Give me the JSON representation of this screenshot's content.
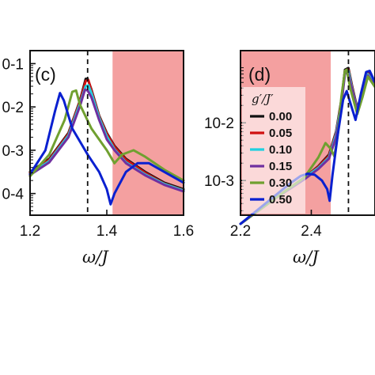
{
  "chart_data": [
    {
      "panel": "(c)",
      "type": "line",
      "xlabel": "ω/J",
      "ylabel": "",
      "xlim": [
        1.2,
        1.6
      ],
      "ylim_log10": [
        -4.5,
        -0.7
      ],
      "yscale": "log",
      "xticks": [
        {
          "value": 1.2,
          "label": "1.2"
        },
        {
          "value": 1.4,
          "label": "1.4"
        },
        {
          "value": 1.6,
          "label": "1.6"
        }
      ],
      "yticks": [
        {
          "exp": -1,
          "label": "0-1"
        },
        {
          "exp": -2,
          "label": "0-2"
        },
        {
          "exp": -3,
          "label": "0-3"
        },
        {
          "exp": -4,
          "label": "0-4"
        }
      ],
      "dashed_line_x": 1.35,
      "shaded_region": {
        "x_from": 1.415,
        "x_to": 1.6,
        "color": "#f4a0a0"
      },
      "series": [
        {
          "name": "0.00",
          "color": "#111111",
          "points": [
            [
              1.2,
              -3.5
            ],
            [
              1.25,
              -3.2
            ],
            [
              1.3,
              -2.6
            ],
            [
              1.33,
              -1.85
            ],
            [
              1.345,
              -1.35
            ],
            [
              1.35,
              -1.35
            ],
            [
              1.36,
              -1.6
            ],
            [
              1.38,
              -2.2
            ],
            [
              1.4,
              -2.6
            ],
            [
              1.42,
              -2.9
            ],
            [
              1.45,
              -3.2
            ],
            [
              1.5,
              -3.5
            ],
            [
              1.55,
              -3.75
            ],
            [
              1.6,
              -3.9
            ]
          ]
        },
        {
          "name": "0.05",
          "color": "#d01010",
          "points": [
            [
              1.2,
              -3.52
            ],
            [
              1.25,
              -3.22
            ],
            [
              1.3,
              -2.62
            ],
            [
              1.33,
              -1.87
            ],
            [
              1.345,
              -1.4
            ],
            [
              1.352,
              -1.38
            ],
            [
              1.36,
              -1.62
            ],
            [
              1.38,
              -2.22
            ],
            [
              1.4,
              -2.62
            ],
            [
              1.42,
              -2.92
            ],
            [
              1.45,
              -3.22
            ],
            [
              1.5,
              -3.52
            ],
            [
              1.55,
              -3.77
            ],
            [
              1.6,
              -3.92
            ]
          ]
        },
        {
          "name": "0.10",
          "color": "#20d0e0",
          "points": [
            [
              1.2,
              -3.55
            ],
            [
              1.25,
              -3.25
            ],
            [
              1.3,
              -2.66
            ],
            [
              1.33,
              -1.92
            ],
            [
              1.345,
              -1.52
            ],
            [
              1.352,
              -1.5
            ],
            [
              1.36,
              -1.68
            ],
            [
              1.38,
              -2.25
            ],
            [
              1.4,
              -2.68
            ],
            [
              1.42,
              -2.98
            ],
            [
              1.45,
              -3.28
            ],
            [
              1.5,
              -3.56
            ],
            [
              1.55,
              -3.78
            ],
            [
              1.6,
              -3.93
            ]
          ]
        },
        {
          "name": "0.15",
          "color": "#7030a0",
          "points": [
            [
              1.2,
              -3.57
            ],
            [
              1.25,
              -3.28
            ],
            [
              1.3,
              -2.7
            ],
            [
              1.33,
              -1.98
            ],
            [
              1.343,
              -1.6
            ],
            [
              1.35,
              -1.62
            ],
            [
              1.36,
              -1.78
            ],
            [
              1.38,
              -2.3
            ],
            [
              1.4,
              -2.75
            ],
            [
              1.42,
              -3.0
            ],
            [
              1.45,
              -3.3
            ],
            [
              1.5,
              -3.58
            ],
            [
              1.55,
              -3.8
            ],
            [
              1.6,
              -3.95
            ]
          ]
        },
        {
          "name": "0.30",
          "color": "#70a030",
          "points": [
            [
              1.2,
              -3.6
            ],
            [
              1.25,
              -3.1
            ],
            [
              1.29,
              -2.3
            ],
            [
              1.31,
              -1.65
            ],
            [
              1.32,
              -1.62
            ],
            [
              1.33,
              -1.95
            ],
            [
              1.36,
              -2.5
            ],
            [
              1.4,
              -3.0
            ],
            [
              1.42,
              -3.3
            ],
            [
              1.44,
              -3.1
            ],
            [
              1.47,
              -3.0
            ],
            [
              1.5,
              -3.15
            ],
            [
              1.55,
              -3.45
            ],
            [
              1.6,
              -3.7
            ]
          ]
        },
        {
          "name": "0.50",
          "color": "#0a20d0",
          "points": [
            [
              1.2,
              -3.55
            ],
            [
              1.24,
              -3.0
            ],
            [
              1.265,
              -2.1
            ],
            [
              1.278,
              -1.68
            ],
            [
              1.288,
              -1.85
            ],
            [
              1.31,
              -2.5
            ],
            [
              1.35,
              -3.1
            ],
            [
              1.38,
              -3.5
            ],
            [
              1.4,
              -3.9
            ],
            [
              1.41,
              -4.25
            ],
            [
              1.42,
              -4.0
            ],
            [
              1.45,
              -3.5
            ],
            [
              1.48,
              -3.3
            ],
            [
              1.51,
              -3.3
            ],
            [
              1.55,
              -3.5
            ],
            [
              1.6,
              -3.75
            ]
          ]
        }
      ]
    },
    {
      "panel": "(d)",
      "type": "line",
      "xlabel": "ω/J",
      "ylabel": "",
      "xlim": [
        2.2,
        2.58
      ],
      "ylim_log10": [
        -3.6,
        -0.75
      ],
      "yscale": "log",
      "xticks": [
        {
          "value": 2.2,
          "label": "2.2"
        },
        {
          "value": 2.4,
          "label": "2.4"
        }
      ],
      "yticks": [
        {
          "exp": -2,
          "label": "10-2"
        },
        {
          "exp": -3,
          "label": "10-3"
        }
      ],
      "dashed_line_x": 2.505,
      "shaded_region": {
        "x_from": 2.2,
        "x_to": 2.455,
        "color": "#f4a0a0"
      },
      "series": [
        {
          "name": "0.00",
          "color": "#111111",
          "points": [
            [
              2.2,
              -3.75
            ],
            [
              2.3,
              -3.3
            ],
            [
              2.38,
              -2.95
            ],
            [
              2.42,
              -2.75
            ],
            [
              2.45,
              -2.55
            ],
            [
              2.47,
              -2.15
            ],
            [
              2.485,
              -1.6
            ],
            [
              2.495,
              -1.08
            ],
            [
              2.505,
              -1.05
            ],
            [
              2.515,
              -1.35
            ],
            [
              2.53,
              -1.75
            ],
            [
              2.545,
              -1.45
            ],
            [
              2.56,
              -1.12
            ],
            [
              2.58,
              -1.3
            ]
          ]
        },
        {
          "name": "0.05",
          "color": "#d01010",
          "points": [
            [
              2.2,
              -3.75
            ],
            [
              2.3,
              -3.3
            ],
            [
              2.38,
              -2.95
            ],
            [
              2.42,
              -2.76
            ],
            [
              2.45,
              -2.57
            ],
            [
              2.47,
              -2.17
            ],
            [
              2.485,
              -1.62
            ],
            [
              2.495,
              -1.1
            ],
            [
              2.505,
              -1.07
            ],
            [
              2.515,
              -1.37
            ],
            [
              2.53,
              -1.77
            ],
            [
              2.545,
              -1.47
            ],
            [
              2.56,
              -1.14
            ],
            [
              2.58,
              -1.32
            ]
          ]
        },
        {
          "name": "0.10",
          "color": "#20d0e0",
          "points": [
            [
              2.2,
              -3.75
            ],
            [
              2.3,
              -3.3
            ],
            [
              2.38,
              -2.95
            ],
            [
              2.42,
              -2.78
            ],
            [
              2.45,
              -2.6
            ],
            [
              2.47,
              -2.2
            ],
            [
              2.485,
              -1.65
            ],
            [
              2.495,
              -1.13
            ],
            [
              2.505,
              -1.1
            ],
            [
              2.515,
              -1.4
            ],
            [
              2.53,
              -1.78
            ],
            [
              2.545,
              -1.5
            ],
            [
              2.56,
              -1.16
            ],
            [
              2.58,
              -1.34
            ]
          ]
        },
        {
          "name": "0.15",
          "color": "#7030a0",
          "points": [
            [
              2.2,
              -3.75
            ],
            [
              2.3,
              -3.3
            ],
            [
              2.38,
              -2.98
            ],
            [
              2.42,
              -2.8
            ],
            [
              2.45,
              -2.62
            ],
            [
              2.47,
              -2.25
            ],
            [
              2.485,
              -1.7
            ],
            [
              2.495,
              -1.15
            ],
            [
              2.503,
              -1.12
            ],
            [
              2.515,
              -1.42
            ],
            [
              2.53,
              -1.8
            ],
            [
              2.545,
              -1.52
            ],
            [
              2.56,
              -1.18
            ],
            [
              2.58,
              -1.36
            ]
          ]
        },
        {
          "name": "0.30",
          "color": "#70a030",
          "points": [
            [
              2.2,
              -3.75
            ],
            [
              2.3,
              -3.3
            ],
            [
              2.38,
              -2.95
            ],
            [
              2.42,
              -2.6
            ],
            [
              2.44,
              -2.35
            ],
            [
              2.455,
              -2.45
            ],
            [
              2.465,
              -2.58
            ],
            [
              2.475,
              -2.2
            ],
            [
              2.485,
              -1.55
            ],
            [
              2.495,
              -1.1
            ],
            [
              2.5,
              -1.08
            ],
            [
              2.51,
              -1.4
            ],
            [
              2.53,
              -1.85
            ],
            [
              2.545,
              -1.55
            ],
            [
              2.56,
              -1.2
            ],
            [
              2.58,
              -1.38
            ]
          ]
        },
        {
          "name": "0.50",
          "color": "#0a20d0",
          "points": [
            [
              2.2,
              -3.75
            ],
            [
              2.25,
              -3.5
            ],
            [
              2.3,
              -3.25
            ],
            [
              2.34,
              -3.05
            ],
            [
              2.37,
              -2.92
            ],
            [
              2.39,
              -2.88
            ],
            [
              2.41,
              -2.9
            ],
            [
              2.43,
              -3.0
            ],
            [
              2.445,
              -3.15
            ],
            [
              2.452,
              -3.35
            ],
            [
              2.46,
              -2.9
            ],
            [
              2.475,
              -2.2
            ],
            [
              2.49,
              -1.6
            ],
            [
              2.5,
              -1.45
            ],
            [
              2.51,
              -1.65
            ],
            [
              2.525,
              -1.95
            ],
            [
              2.54,
              -1.5
            ],
            [
              2.555,
              -1.12
            ],
            [
              2.565,
              -1.1
            ],
            [
              2.58,
              -1.3
            ]
          ]
        }
      ],
      "legend": {
        "title": "g′/J′",
        "placement": "left",
        "entries": [
          "0.00",
          "0.05",
          "0.10",
          "0.15",
          "0.30",
          "0.50"
        ]
      }
    }
  ]
}
